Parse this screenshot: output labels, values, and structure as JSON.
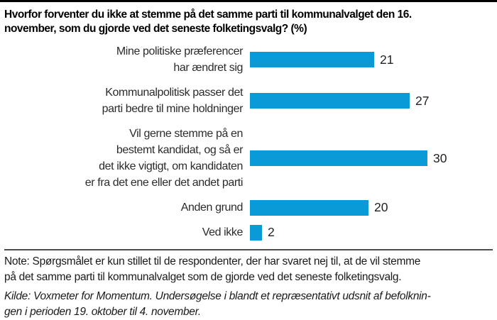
{
  "title": "Hvorfor forventer du ikke at stemme på det samme parti til kommunalvalget den 16.\nnovember, som du gjorde ved det seneste folketingsvalg? (%)",
  "chart_data": {
    "type": "bar",
    "orientation": "horizontal",
    "title": "Hvorfor forventer du ikke at stemme på det samme parti til kommunalvalget den 16. november, som du gjorde ved det seneste folketingsvalg? (%)",
    "unit": "%",
    "categories": [
      "Mine politiske præferencer\nhar ændret sig",
      "Kommunalpolitisk passer det\nparti bedre til mine holdninger",
      "Vil gerne stemme på en\nbestemt kandidat, og så er\ndet ikke vigtigt, om kandidaten\ner fra det ene eller det andet parti",
      "Anden grund",
      "Ved ikke"
    ],
    "values": [
      21,
      27,
      30,
      20,
      2
    ],
    "xlim": [
      0,
      33
    ],
    "grid": false,
    "legend": "none",
    "value_labels_shown": true,
    "bar_color": "#0a9ad8"
  },
  "note": "Note: Spørgsmålet er kun stillet til de respondenter, der har svaret nej til, at de vil stemme\npå det samme parti til kommunalvalget som de gjorde ved det seneste folketingsvalg.",
  "source": "Kilde: Voxmeter for Momentum. Undersøgelse i blandt et repræsentativt udsnit af befolknin-\ngen i perioden 19. oktober til 4. november.",
  "colors": {
    "bar": "#0a9ad8",
    "text": "#1a1a1a",
    "divider": "#4d4d4d",
    "top_border": "#000000"
  }
}
